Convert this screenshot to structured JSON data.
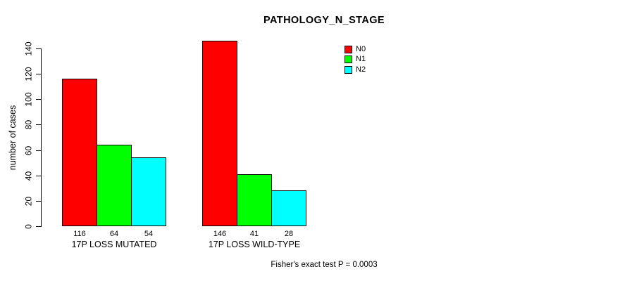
{
  "chart_data": {
    "type": "bar",
    "title": "PATHOLOGY_N_STAGE",
    "ylabel": "number of cases",
    "xlabel": "",
    "ylim": [
      0,
      140
    ],
    "yticks": [
      0,
      20,
      40,
      60,
      80,
      100,
      120,
      140
    ],
    "grid": false,
    "legend_position": "top-right",
    "categories": [
      "17P LOSS MUTATED",
      "17P LOSS WILD-TYPE"
    ],
    "series": [
      {
        "name": "N0",
        "color": "#ff0000",
        "values": [
          116,
          146
        ]
      },
      {
        "name": "N1",
        "color": "#00ff00",
        "values": [
          64,
          41
        ]
      },
      {
        "name": "N2",
        "color": "#00ffff",
        "values": [
          54,
          28
        ]
      }
    ],
    "show_bar_values": true,
    "annotation": "Fisher's exact test P = 0.0003",
    "colors": {
      "background": "#ffffff",
      "axis": "#000000",
      "text": "#000000",
      "bar_border": "#000000"
    }
  }
}
